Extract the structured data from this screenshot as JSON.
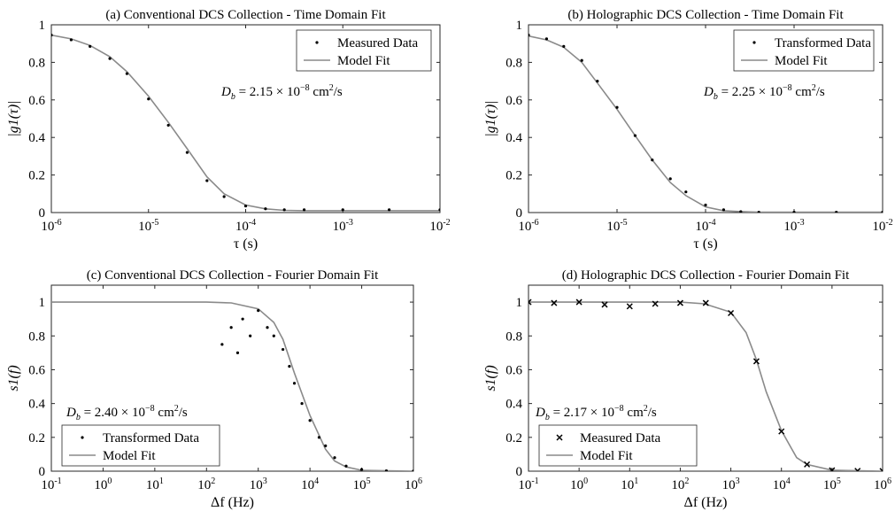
{
  "figure": {
    "charts": [
      {
        "title": "(a) Conventional DCS Collection - Time Domain Fit",
        "legend": [
          "Measured Data",
          "Model Fit"
        ],
        "annotation": {
          "prefix": "D",
          "sub": "b",
          "mant": " = 2.15 × 10",
          "exp": "−8",
          "unit": " cm",
          "unit_exp": "2",
          "unit_tail": "/s"
        }
      },
      {
        "title": "(b) Holographic DCS Collection - Time Domain Fit",
        "legend": [
          "Transformed Data",
          "Model Fit"
        ],
        "annotation": {
          "prefix": "D",
          "sub": "b",
          "mant": " = 2.25 × 10",
          "exp": "−8",
          "unit": " cm",
          "unit_exp": "2",
          "unit_tail": "/s"
        }
      },
      {
        "title": "(c) Conventional DCS Collection - Fourier Domain Fit",
        "legend": [
          "Transformed Data",
          "Model Fit"
        ],
        "annotation": {
          "prefix": "D",
          "sub": "b",
          "mant": " = 2.40 × 10",
          "exp": "−8",
          "unit": " cm",
          "unit_exp": "2",
          "unit_tail": "/s"
        }
      },
      {
        "title": "(d) Holographic DCS Collection - Fourier Domain Fit",
        "legend": [
          "Measured Data",
          "Model Fit"
        ],
        "annotation": {
          "prefix": "D",
          "sub": "b",
          "mant": " = 2.17 × 10",
          "exp": "−8",
          "unit": " cm",
          "unit_exp": "2",
          "unit_tail": "/s"
        }
      }
    ]
  },
  "chart_data": [
    {
      "type": "line",
      "title": "(a) Conventional DCS Collection - Time Domain Fit",
      "xlabel": "τ (s)",
      "ylabel": "|g1(τ)|",
      "xscale": "log",
      "xlim": [
        1e-06,
        0.01
      ],
      "ylim": [
        0,
        1
      ],
      "xticks": [
        1e-06,
        1e-05,
        0.0001,
        0.001,
        0.01
      ],
      "xtick_exps": [
        "-6",
        "-5",
        "-4",
        "-3",
        "-2"
      ],
      "yticks": [
        0,
        0.2,
        0.4,
        0.6,
        0.8,
        1
      ],
      "ytick_labels": [
        "0",
        "0.2",
        "0.4",
        "0.6",
        "0.8",
        "1"
      ],
      "legend_position": "top-right",
      "series": [
        {
          "name": "Measured Data",
          "style": "dots",
          "x": [
            1e-06,
            1.6e-06,
            2.5e-06,
            4e-06,
            6e-06,
            1e-05,
            1.6e-05,
            2.5e-05,
            4e-05,
            6e-05,
            0.0001,
            0.00016,
            0.00025,
            0.0004,
            0.001,
            0.003,
            0.01
          ],
          "y": [
            0.945,
            0.92,
            0.885,
            0.82,
            0.74,
            0.605,
            0.465,
            0.32,
            0.17,
            0.085,
            0.035,
            0.02,
            0.015,
            0.015,
            0.015,
            0.015,
            0.015
          ]
        },
        {
          "name": "Model Fit",
          "style": "line",
          "x": [
            1e-06,
            1.6e-06,
            2.5e-06,
            4e-06,
            6e-06,
            1e-05,
            1.6e-05,
            2.5e-05,
            4e-05,
            6e-05,
            0.0001,
            0.00016,
            0.00025,
            0.0004,
            0.001,
            0.003,
            0.01
          ],
          "y": [
            0.945,
            0.925,
            0.89,
            0.83,
            0.75,
            0.62,
            0.48,
            0.34,
            0.19,
            0.1,
            0.04,
            0.02,
            0.012,
            0.01,
            0.01,
            0.01,
            0.01
          ]
        }
      ]
    },
    {
      "type": "line",
      "title": "(b) Holographic DCS Collection - Time Domain Fit",
      "xlabel": "τ (s)",
      "ylabel": "|g1(τ)|",
      "xscale": "log",
      "xlim": [
        1e-06,
        0.01
      ],
      "ylim": [
        0,
        1
      ],
      "xticks": [
        1e-06,
        1e-05,
        0.0001,
        0.001,
        0.01
      ],
      "xtick_exps": [
        "-6",
        "-5",
        "-4",
        "-3",
        "-2"
      ],
      "yticks": [
        0,
        0.2,
        0.4,
        0.6,
        0.8,
        1
      ],
      "ytick_labels": [
        "0",
        "0.2",
        "0.4",
        "0.6",
        "0.8",
        "1"
      ],
      "legend_position": "top-right",
      "series": [
        {
          "name": "Transformed Data",
          "style": "dots",
          "x": [
            1e-06,
            1.6e-06,
            2.5e-06,
            4e-06,
            6e-06,
            1e-05,
            1.6e-05,
            2.5e-05,
            4e-05,
            6e-05,
            0.0001,
            0.00016,
            0.00025,
            0.0004,
            0.001,
            0.003,
            0.01
          ],
          "y": [
            0.945,
            0.925,
            0.885,
            0.81,
            0.7,
            0.56,
            0.41,
            0.28,
            0.18,
            0.11,
            0.04,
            0.015,
            0.005,
            0.002,
            0.002,
            0.002,
            0.002
          ]
        },
        {
          "name": "Model Fit",
          "style": "line",
          "x": [
            1e-06,
            1.6e-06,
            2.5e-06,
            4e-06,
            6e-06,
            1e-05,
            1.6e-05,
            2.5e-05,
            4e-05,
            6e-05,
            0.0001,
            0.00016,
            0.00025,
            0.0004,
            0.001,
            0.003,
            0.01
          ],
          "y": [
            0.94,
            0.92,
            0.88,
            0.8,
            0.69,
            0.55,
            0.41,
            0.28,
            0.16,
            0.09,
            0.03,
            0.01,
            0.005,
            0.002,
            0.002,
            0.002,
            0.002
          ]
        }
      ]
    },
    {
      "type": "scatter",
      "title": "(c) Conventional DCS Collection - Fourier Domain Fit",
      "xlabel": "Δf (Hz)",
      "ylabel": "s1(f)",
      "xscale": "log",
      "xlim": [
        0.1,
        1000000.0
      ],
      "ylim": [
        0,
        1.1
      ],
      "xticks": [
        0.1,
        1,
        10,
        100,
        1000.0,
        10000.0,
        100000.0,
        1000000.0
      ],
      "xtick_exps": [
        "-1",
        "0",
        "1",
        "2",
        "3",
        "4",
        "5",
        "6"
      ],
      "yticks": [
        0,
        0.2,
        0.4,
        0.6,
        0.8,
        1
      ],
      "ytick_labels": [
        "0",
        "0.2",
        "0.4",
        "0.6",
        "0.8",
        "1"
      ],
      "legend_position": "bottom-left",
      "series": [
        {
          "name": "Transformed Data",
          "style": "dots",
          "x": [
            200,
            300,
            400,
            500,
            700,
            1000,
            1500,
            2000,
            3000,
            4000,
            5000,
            7000,
            10000,
            15000,
            20000,
            30000,
            50000,
            100000,
            300000,
            1000000
          ],
          "y": [
            0.75,
            0.85,
            0.7,
            0.9,
            0.8,
            0.95,
            0.85,
            0.8,
            0.72,
            0.62,
            0.52,
            0.4,
            0.3,
            0.2,
            0.15,
            0.08,
            0.03,
            0.01,
            0.002,
            0.001
          ]
        },
        {
          "name": "Model Fit",
          "style": "line",
          "x": [
            0.1,
            1,
            10,
            100,
            300,
            1000,
            2000,
            3000,
            5000,
            10000,
            20000,
            30000,
            50000,
            100000,
            1000000
          ],
          "y": [
            1,
            1,
            1,
            1,
            0.995,
            0.96,
            0.88,
            0.78,
            0.58,
            0.33,
            0.13,
            0.06,
            0.025,
            0.005,
            0
          ]
        }
      ]
    },
    {
      "type": "scatter",
      "title": "(d) Holographic DCS Collection - Fourier Domain Fit",
      "xlabel": "Δf (Hz)",
      "ylabel": "s1(f)",
      "xscale": "log",
      "xlim": [
        0.1,
        1000000.0
      ],
      "ylim": [
        0,
        1.1
      ],
      "xticks": [
        0.1,
        1,
        10,
        100,
        1000.0,
        10000.0,
        100000.0,
        1000000.0
      ],
      "xtick_exps": [
        "-1",
        "0",
        "1",
        "2",
        "3",
        "4",
        "5",
        "6"
      ],
      "yticks": [
        0,
        0.2,
        0.4,
        0.6,
        0.8,
        1
      ],
      "ytick_labels": [
        "0",
        "0.2",
        "0.4",
        "0.6",
        "0.8",
        "1"
      ],
      "legend_position": "bottom-left",
      "series": [
        {
          "name": "Measured Data",
          "style": "cross",
          "x": [
            0.1,
            0.32,
            1,
            3.2,
            10,
            32,
            100,
            320,
            1000,
            3200,
            10000,
            32000,
            100000,
            320000,
            1000000
          ],
          "y": [
            1,
            0.995,
            1,
            0.985,
            0.975,
            0.99,
            0.995,
            0.995,
            0.935,
            0.65,
            0.235,
            0.04,
            0.005,
            0.002,
            0.001
          ]
        },
        {
          "name": "Model Fit",
          "style": "line",
          "x": [
            0.1,
            1,
            10,
            100,
            300,
            1000,
            2000,
            3200,
            5000,
            10000,
            20000,
            32000,
            100000,
            1000000
          ],
          "y": [
            1,
            1,
            1,
            1,
            0.99,
            0.94,
            0.82,
            0.66,
            0.47,
            0.24,
            0.08,
            0.04,
            0.006,
            0
          ]
        }
      ]
    }
  ]
}
